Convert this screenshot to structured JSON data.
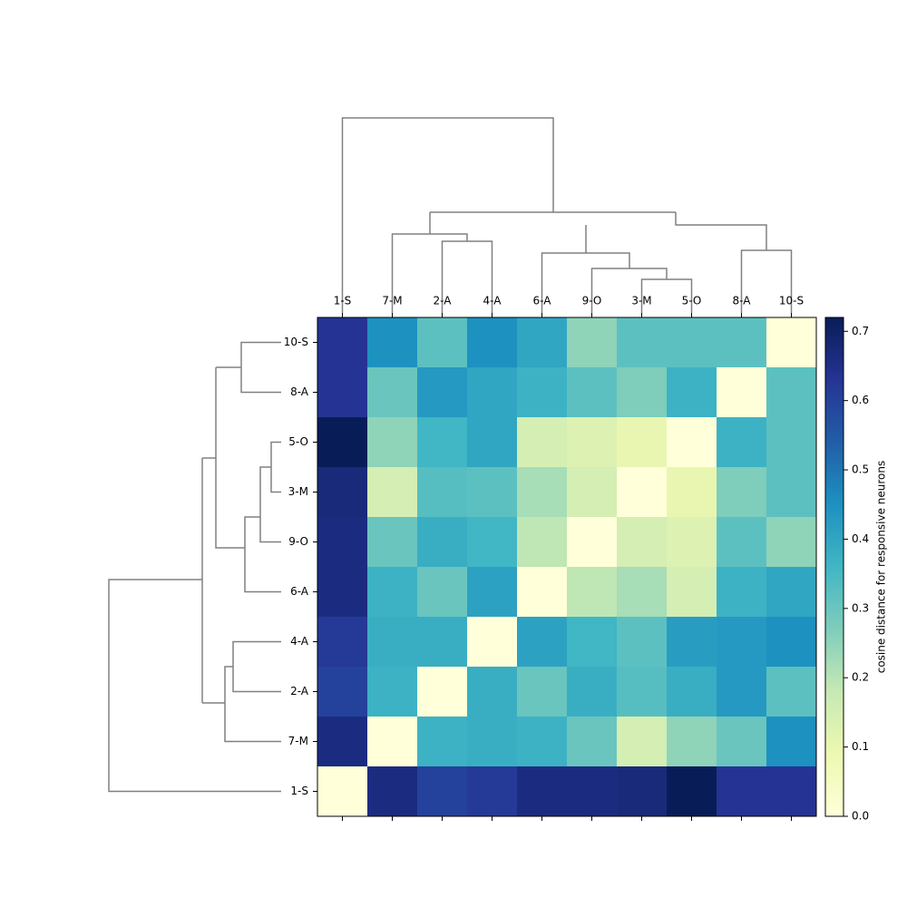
{
  "chart_data": {
    "type": "heatmap",
    "columns": [
      "1-S",
      "7-M",
      "2-A",
      "4-A",
      "6-A",
      "9-O",
      "3-M",
      "5-O",
      "8-A",
      "10-S"
    ],
    "rows": [
      "10-S",
      "8-A",
      "5-O",
      "3-M",
      "9-O",
      "6-A",
      "4-A",
      "2-A",
      "7-M",
      "1-S"
    ],
    "values": [
      [
        0.63,
        0.45,
        0.32,
        0.45,
        0.4,
        0.25,
        0.32,
        0.32,
        0.32,
        0.0
      ],
      [
        0.63,
        0.3,
        0.43,
        0.4,
        0.37,
        0.32,
        0.27,
        0.37,
        0.0,
        0.32
      ],
      [
        0.72,
        0.25,
        0.36,
        0.4,
        0.15,
        0.13,
        0.1,
        0.0,
        0.37,
        0.32
      ],
      [
        0.67,
        0.15,
        0.33,
        0.32,
        0.22,
        0.15,
        0.0,
        0.1,
        0.27,
        0.32
      ],
      [
        0.66,
        0.3,
        0.38,
        0.36,
        0.19,
        0.0,
        0.15,
        0.13,
        0.32,
        0.25
      ],
      [
        0.66,
        0.37,
        0.3,
        0.41,
        0.0,
        0.19,
        0.22,
        0.15,
        0.37,
        0.4
      ],
      [
        0.62,
        0.38,
        0.38,
        0.0,
        0.41,
        0.36,
        0.32,
        0.42,
        0.43,
        0.45
      ],
      [
        0.6,
        0.37,
        0.0,
        0.38,
        0.3,
        0.38,
        0.33,
        0.38,
        0.43,
        0.32
      ],
      [
        0.66,
        0.0,
        0.37,
        0.38,
        0.37,
        0.3,
        0.15,
        0.25,
        0.3,
        0.45
      ],
      [
        0.0,
        0.66,
        0.6,
        0.62,
        0.66,
        0.66,
        0.67,
        0.72,
        0.63,
        0.63
      ]
    ],
    "colormap": [
      "#ffffd9",
      "#edf8b1",
      "#c7e9b4",
      "#7fcdbb",
      "#41b6c4",
      "#1d91c0",
      "#225ea8",
      "#253494",
      "#081d58"
    ],
    "clim": [
      0,
      0.72
    ],
    "cticks": [
      {
        "value": 0,
        "label": "0.0"
      },
      0.1,
      0.2,
      0.3,
      0.4,
      0.5,
      0.6,
      0.7
    ],
    "colorbar_label": "cosine distance for responsive neurons"
  }
}
